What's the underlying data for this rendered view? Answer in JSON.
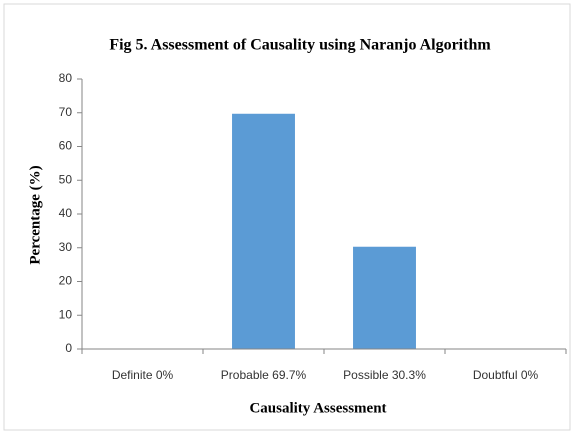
{
  "chart_data": {
    "type": "bar",
    "title": "Fig 5. Assessment of Causality using Naranjo Algorithm",
    "x_label": "Causality Assessment",
    "y_label": "Percentage (%)",
    "categories": [
      "Definite 0%",
      "Probable 69.7%",
      "Possible 30.3%",
      "Doubtful 0%"
    ],
    "values": [
      0,
      69.7,
      30.3,
      0
    ],
    "color": "#5b9bd5",
    "ylim": [
      0,
      80
    ],
    "yticks": [
      0,
      10,
      20,
      30,
      40,
      50,
      60,
      70,
      80
    ],
    "grid": false
  }
}
